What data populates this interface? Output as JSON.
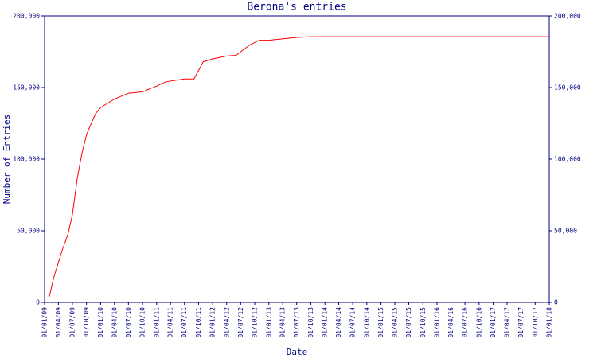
{
  "chart_data": {
    "type": "line",
    "title": "Berona's entries",
    "xlabel": "Date",
    "ylabel": "Number of Entries",
    "x": [
      "2009-02-01",
      "2009-03-01",
      "2009-04-01",
      "2009-05-01",
      "2009-06-01",
      "2009-07-01",
      "2009-08-01",
      "2009-09-01",
      "2009-10-01",
      "2009-11-01",
      "2009-12-01",
      "2010-01-01",
      "2010-04-01",
      "2010-07-01",
      "2010-10-01",
      "2011-01-01",
      "2011-03-01",
      "2011-07-01",
      "2011-09-01",
      "2011-10-01",
      "2011-11-01",
      "2012-01-01",
      "2012-04-01",
      "2012-06-01",
      "2012-09-01",
      "2012-11-01",
      "2013-01-01",
      "2013-07-01",
      "2013-10-01",
      "2018-01-01"
    ],
    "series": [
      {
        "name": "Entries",
        "color": "#ff0000",
        "values": [
          4000,
          17000,
          28000,
          38000,
          47000,
          61000,
          86000,
          104000,
          117000,
          125000,
          132000,
          136000,
          142000,
          146000,
          147000,
          151000,
          154000,
          156000,
          156000,
          162000,
          168000,
          170000,
          172000,
          172500,
          180000,
          183000,
          183000,
          185000,
          185500,
          185500
        ]
      }
    ],
    "xlim": [
      "2009-01-01",
      "2018-01-01"
    ],
    "xticks": [
      {
        "value": "2009-01-01",
        "label": "01/01/09"
      },
      {
        "value": "2009-04-01",
        "label": "01/04/09"
      },
      {
        "value": "2009-07-01",
        "label": "01/07/09"
      },
      {
        "value": "2009-10-01",
        "label": "01/10/09"
      },
      {
        "value": "2010-01-01",
        "label": "01/01/10"
      },
      {
        "value": "2010-04-01",
        "label": "01/04/10"
      },
      {
        "value": "2010-07-01",
        "label": "01/07/10"
      },
      {
        "value": "2010-10-01",
        "label": "01/10/10"
      },
      {
        "value": "2011-01-01",
        "label": "01/01/11"
      },
      {
        "value": "2011-04-01",
        "label": "01/04/11"
      },
      {
        "value": "2011-07-01",
        "label": "01/07/11"
      },
      {
        "value": "2011-10-01",
        "label": "01/10/11"
      },
      {
        "value": "2012-01-01",
        "label": "01/01/12"
      },
      {
        "value": "2012-04-01",
        "label": "01/04/12"
      },
      {
        "value": "2012-07-01",
        "label": "01/07/12"
      },
      {
        "value": "2012-10-01",
        "label": "01/10/12"
      },
      {
        "value": "2013-01-01",
        "label": "01/01/13"
      },
      {
        "value": "2013-04-01",
        "label": "01/04/13"
      },
      {
        "value": "2013-07-01",
        "label": "01/07/13"
      },
      {
        "value": "2013-10-01",
        "label": "01/10/13"
      },
      {
        "value": "2014-01-01",
        "label": "01/01/14"
      },
      {
        "value": "2014-04-01",
        "label": "01/04/14"
      },
      {
        "value": "2014-07-01",
        "label": "01/07/14"
      },
      {
        "value": "2014-10-01",
        "label": "01/10/14"
      },
      {
        "value": "2015-01-01",
        "label": "01/01/15"
      },
      {
        "value": "2015-04-01",
        "label": "01/04/15"
      },
      {
        "value": "2015-07-01",
        "label": "01/07/15"
      },
      {
        "value": "2015-10-01",
        "label": "01/10/15"
      },
      {
        "value": "2016-01-01",
        "label": "01/01/16"
      },
      {
        "value": "2016-04-01",
        "label": "01/04/16"
      },
      {
        "value": "2016-07-01",
        "label": "01/07/16"
      },
      {
        "value": "2016-10-01",
        "label": "01/10/16"
      },
      {
        "value": "2017-01-01",
        "label": "01/01/17"
      },
      {
        "value": "2017-04-01",
        "label": "01/04/17"
      },
      {
        "value": "2017-07-01",
        "label": "01/07/17"
      },
      {
        "value": "2017-10-01",
        "label": "01/10/17"
      },
      {
        "value": "2018-01-01",
        "label": "01/01/18"
      }
    ],
    "ylim": [
      0,
      200000
    ],
    "yticks": [
      0,
      {
        "value": 50000,
        "label": "50,000"
      },
      {
        "value": 100000,
        "label": "100,000"
      },
      {
        "value": 150000,
        "label": "150,000"
      },
      {
        "value": 200000,
        "label": "200,000"
      }
    ],
    "y2lim": [
      0,
      200000
    ],
    "y2ticks": [
      0,
      {
        "value": 50000,
        "label": "50,000"
      },
      {
        "value": 100000,
        "label": "100,000"
      },
      {
        "value": 150000,
        "label": "150,000"
      },
      {
        "value": 200000,
        "label": "200,000"
      }
    ]
  }
}
